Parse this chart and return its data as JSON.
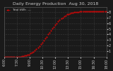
{
  "title": "Daily Energy Production  Aug 30, 2018",
  "legend_label": "Total kWh  ---",
  "bg_color": "#1a1a1a",
  "plot_bg_color": "#1a1a1a",
  "grid_color": "#555555",
  "line_color": "#ff0000",
  "ylim": [
    0,
    9
  ],
  "yticks": [
    1,
    2,
    3,
    4,
    5,
    6,
    7,
    8
  ],
  "ytick_labels": [
    "1",
    "2",
    "3",
    "4",
    "5",
    "6",
    "7",
    "8"
  ],
  "x_data": [
    0,
    1,
    2,
    3,
    4,
    5,
    6,
    7,
    8,
    9,
    10,
    11,
    12,
    13,
    14,
    15,
    16,
    17,
    18,
    19,
    20,
    21,
    22,
    23,
    24,
    25,
    26,
    27,
    28,
    29,
    30,
    31,
    32,
    33,
    34,
    35,
    36,
    37,
    38,
    39,
    40,
    41,
    42,
    43,
    44,
    45,
    46,
    47,
    48,
    49,
    50,
    51,
    52,
    53,
    54,
    55,
    56,
    57,
    58,
    59,
    60,
    61,
    62,
    63,
    64,
    65,
    66,
    67,
    68,
    69,
    70
  ],
  "y_data": [
    0,
    0,
    0,
    0,
    0,
    0,
    0,
    0,
    0,
    0,
    0,
    0,
    0.05,
    0.1,
    0.15,
    0.22,
    0.3,
    0.4,
    0.55,
    0.7,
    0.9,
    1.1,
    1.35,
    1.6,
    1.9,
    2.2,
    2.55,
    2.9,
    3.25,
    3.6,
    4.0,
    4.35,
    4.7,
    5.05,
    5.4,
    5.75,
    6.05,
    6.35,
    6.6,
    6.85,
    7.05,
    7.25,
    7.45,
    7.6,
    7.72,
    7.83,
    7.9,
    7.96,
    8.01,
    8.05,
    8.08,
    8.1,
    8.11,
    8.12,
    8.12,
    8.12,
    8.12,
    8.12,
    8.12,
    8.12,
    8.12,
    8.12,
    8.12,
    8.12,
    8.12,
    8.12,
    8.12,
    8.12,
    8.12,
    8.12,
    8.12
  ],
  "xlim": [
    0,
    70
  ],
  "xtick_positions": [
    0,
    8.75,
    17.5,
    26.25,
    35,
    43.75,
    52.5,
    61.25,
    70
  ],
  "xtick_labels": [
    "6:00",
    "7:30",
    "9:00",
    "10:30",
    "12:00",
    "13:30",
    "15:00",
    "16:30",
    "18:00"
  ],
  "title_fontsize": 4.5,
  "tick_fontsize": 3.5,
  "figsize": [
    1.6,
    1.0
  ],
  "dpi": 100,
  "text_color": "#cccccc",
  "title_color": "#cccccc"
}
